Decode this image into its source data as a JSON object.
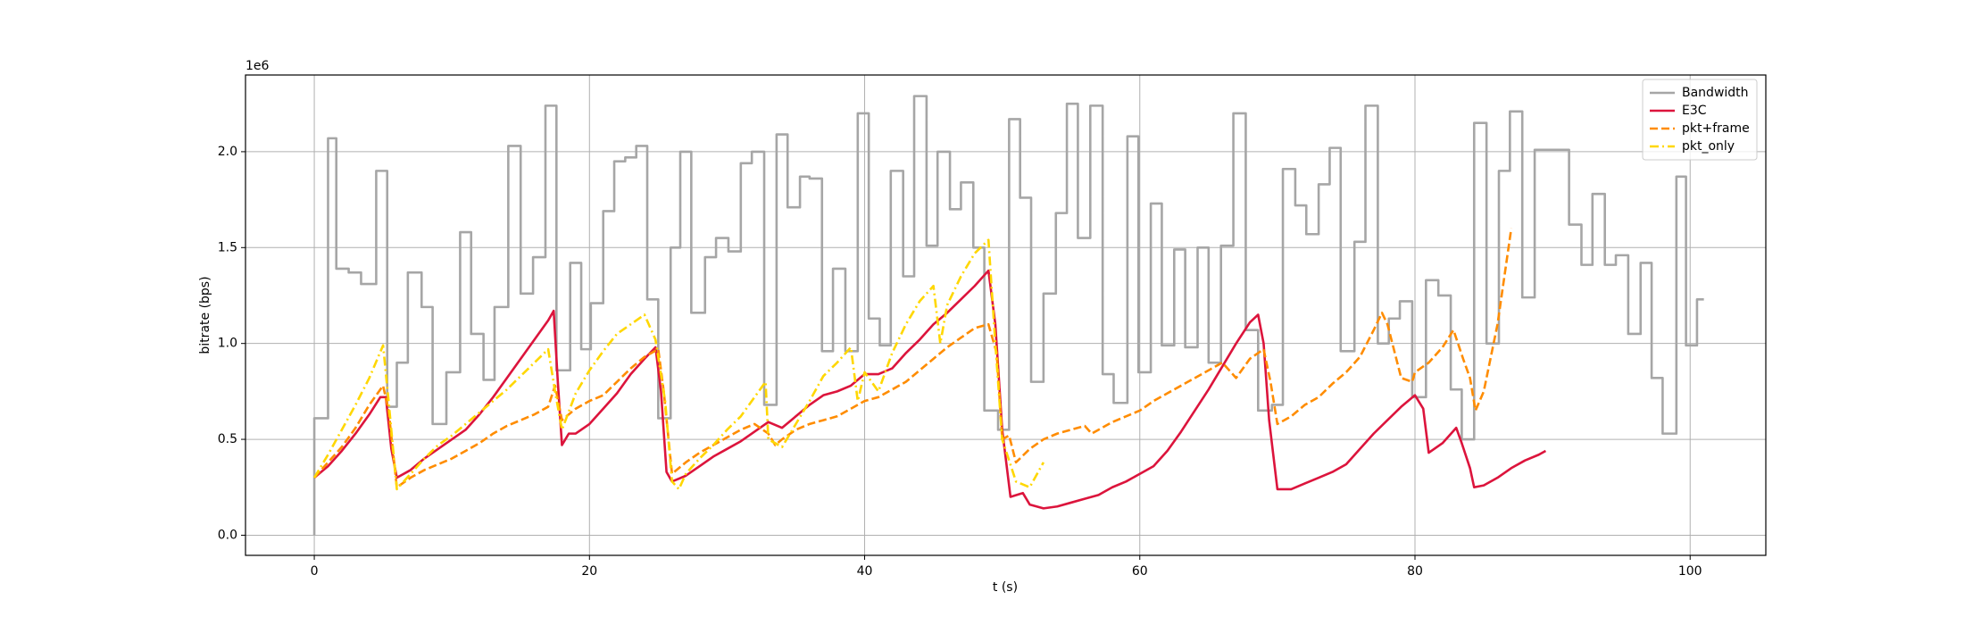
{
  "chart_data": {
    "type": "line",
    "xlabel": "t (s)",
    "ylabel": "bitrate (bps)",
    "y_offset_label": "1e6",
    "xlim": [
      -5,
      105.5
    ],
    "ylim": [
      -105000,
      2400000
    ],
    "xticks": [
      0,
      20,
      40,
      60,
      80,
      100
    ],
    "yticks": [
      {
        "value": 0,
        "label": "0.0"
      },
      {
        "value": 500000,
        "label": "0.5"
      },
      {
        "value": 1000000,
        "label": "1.0"
      },
      {
        "value": 1500000,
        "label": "1.5"
      },
      {
        "value": 2000000,
        "label": "2.0"
      }
    ],
    "grid": true,
    "legend": "upper right",
    "series": [
      {
        "name": "Bandwidth",
        "color": "#a6a6a6",
        "linestyle": "solid",
        "drawstyle": "steps-post",
        "x": [
          0,
          0,
          1,
          1.6,
          2.5,
          3.4,
          4.5,
          5.3,
          6,
          6.8,
          7.8,
          8.6,
          9.6,
          10.6,
          11.4,
          12.3,
          13.1,
          14.1,
          15,
          15.9,
          16.8,
          17.6,
          18.6,
          19.4,
          20.1,
          21,
          21.8,
          22.6,
          23.4,
          24.2,
          25,
          25.9,
          26.6,
          27.4,
          28.4,
          29.2,
          30.1,
          31,
          31.8,
          32.7,
          33.6,
          34.4,
          35.3,
          36,
          36.9,
          37.7,
          38.6,
          39.5,
          40.3,
          41.1,
          41.9,
          42.8,
          43.6,
          44.5,
          45.3,
          46.2,
          47,
          47.9,
          48.7,
          49.7,
          50.5,
          51.3,
          52.1,
          53,
          53.9,
          54.7,
          55.5,
          56.4,
          57.3,
          58.1,
          59.1,
          59.9,
          60.8,
          61.6,
          62.5,
          63.3,
          64.2,
          65,
          65.9,
          66.8,
          67.7,
          68.6,
          69.6,
          70.4,
          71.3,
          72.1,
          73,
          73.8,
          74.6,
          75.6,
          76.4,
          77.3,
          78.1,
          78.9,
          79.8,
          80.8,
          81.7,
          82.6,
          83.4,
          84.3,
          85.2,
          86.1,
          86.9,
          87.8,
          88.7,
          91.2,
          92.1,
          92.9,
          93.8,
          94.6,
          95.5,
          96.4,
          97.2,
          98,
          99,
          99.7,
          100.5,
          101
        ],
        "values": [
          0,
          610000,
          2070000,
          1390000,
          1370000,
          1310000,
          1900000,
          670000,
          900000,
          1370000,
          1190000,
          580000,
          850000,
          1580000,
          1050000,
          810000,
          1190000,
          2030000,
          1260000,
          1450000,
          2240000,
          860000,
          1420000,
          970000,
          1210000,
          1690000,
          1950000,
          1970000,
          2030000,
          1230000,
          610000,
          1500000,
          2000000,
          1160000,
          1450000,
          1550000,
          1480000,
          1940000,
          2000000,
          680000,
          2090000,
          1710000,
          1870000,
          1860000,
          960000,
          1390000,
          960000,
          2200000,
          1130000,
          990000,
          1900000,
          1350000,
          2290000,
          1510000,
          2000000,
          1700000,
          1840000,
          1500000,
          650000,
          550000,
          2170000,
          1760000,
          800000,
          1260000,
          1680000,
          2250000,
          1550000,
          2240000,
          840000,
          690000,
          2080000,
          850000,
          1730000,
          990000,
          1490000,
          980000,
          1500000,
          900000,
          1510000,
          2200000,
          1070000,
          650000,
          680000,
          1910000,
          1720000,
          1570000,
          1830000,
          2020000,
          960000,
          1530000,
          2240000,
          1000000,
          1130000,
          1220000,
          720000,
          1330000,
          1250000,
          760000,
          500000,
          2150000,
          1000000,
          1900000,
          2210000,
          1240000,
          2010000,
          1620000,
          1410000,
          1780000,
          1410000,
          1460000,
          1050000,
          1420000,
          820000,
          530000,
          1870000,
          990000,
          1230000,
          1230000
        ]
      },
      {
        "name": "E3C",
        "color": "#dc143c",
        "linestyle": "solid",
        "x": [
          0,
          1,
          2,
          3,
          4,
          4.8,
          5.2,
          5.6,
          6,
          7,
          8,
          9,
          10,
          11,
          12,
          13,
          14,
          15,
          16,
          17,
          17.4,
          17.7,
          18,
          18.5,
          19,
          20,
          21,
          22,
          23,
          24,
          24.8,
          25.2,
          25.6,
          26,
          27,
          28,
          29,
          30,
          31,
          32,
          33,
          34,
          35,
          36,
          37,
          38,
          39,
          40,
          41,
          42,
          43,
          44,
          45,
          46,
          47,
          48,
          49,
          49.5,
          50,
          50.6,
          51.5,
          52,
          53,
          54,
          55,
          56,
          57,
          58,
          59,
          60,
          61,
          62,
          63,
          64,
          65,
          66,
          67,
          68,
          68.6,
          69,
          69.4,
          70,
          71,
          72,
          73,
          74,
          75,
          76,
          77,
          78,
          79,
          80,
          80.6,
          81,
          82,
          83,
          83.4,
          84,
          84.3,
          85,
          86,
          87,
          88,
          89,
          89.5
        ],
        "values": [
          300000,
          360000,
          440000,
          530000,
          630000,
          720000,
          720000,
          450000,
          300000,
          340000,
          400000,
          450000,
          500000,
          550000,
          630000,
          720000,
          820000,
          920000,
          1020000,
          1120000,
          1170000,
          800000,
          470000,
          530000,
          530000,
          580000,
          660000,
          740000,
          840000,
          920000,
          980000,
          750000,
          330000,
          280000,
          310000,
          360000,
          410000,
          450000,
          490000,
          540000,
          590000,
          560000,
          620000,
          680000,
          730000,
          750000,
          780000,
          840000,
          840000,
          870000,
          950000,
          1020000,
          1100000,
          1160000,
          1230000,
          1300000,
          1380000,
          1100000,
          550000,
          200000,
          220000,
          160000,
          140000,
          150000,
          170000,
          190000,
          210000,
          250000,
          280000,
          320000,
          360000,
          440000,
          540000,
          650000,
          760000,
          880000,
          1000000,
          1110000,
          1150000,
          1000000,
          600000,
          240000,
          240000,
          270000,
          300000,
          330000,
          370000,
          450000,
          530000,
          600000,
          670000,
          730000,
          660000,
          430000,
          480000,
          560000,
          480000,
          350000,
          250000,
          260000,
          300000,
          350000,
          390000,
          420000,
          440000
        ]
      },
      {
        "name": "pkt+frame",
        "color": "#ff8c00",
        "linestyle": "dashed",
        "x": [
          0,
          1,
          2,
          3,
          4,
          5,
          5.4,
          6,
          7,
          8,
          9,
          10,
          11,
          12,
          13,
          14,
          15,
          16,
          17,
          17.5,
          18,
          19,
          20,
          21,
          22,
          23,
          24,
          25,
          25.4,
          26,
          27,
          28,
          29,
          30,
          31,
          32,
          33,
          33.5,
          34,
          35,
          36,
          37,
          38,
          39,
          40,
          41,
          42,
          43,
          44,
          45,
          46,
          47,
          48,
          49,
          49.6,
          50,
          50.5,
          51,
          52,
          53,
          54,
          55,
          56,
          56.5,
          57,
          58,
          59,
          60,
          61,
          62,
          63,
          64,
          65,
          66,
          67,
          68,
          69,
          69.5,
          70,
          71,
          72,
          73,
          74,
          75,
          76,
          77,
          77.6,
          78,
          79,
          79.8,
          80,
          81,
          82,
          82.8,
          83.5,
          84,
          84.4,
          85,
          86,
          87
        ],
        "values": [
          300000,
          380000,
          460000,
          560000,
          680000,
          780000,
          650000,
          250000,
          300000,
          340000,
          370000,
          400000,
          440000,
          480000,
          530000,
          570000,
          600000,
          630000,
          670000,
          780000,
          600000,
          660000,
          700000,
          730000,
          800000,
          870000,
          930000,
          970000,
          750000,
          320000,
          380000,
          430000,
          470000,
          510000,
          550000,
          580000,
          530000,
          470000,
          500000,
          550000,
          580000,
          600000,
          620000,
          660000,
          700000,
          720000,
          760000,
          800000,
          860000,
          920000,
          980000,
          1030000,
          1080000,
          1100000,
          950000,
          500000,
          520000,
          380000,
          450000,
          500000,
          530000,
          550000,
          570000,
          530000,
          550000,
          590000,
          620000,
          650000,
          700000,
          740000,
          780000,
          820000,
          860000,
          900000,
          820000,
          920000,
          970000,
          800000,
          580000,
          620000,
          680000,
          720000,
          790000,
          850000,
          930000,
          1070000,
          1160000,
          1100000,
          820000,
          800000,
          850000,
          900000,
          980000,
          1070000,
          920000,
          820000,
          650000,
          750000,
          1100000,
          1600000
        ]
      },
      {
        "name": "pkt_only",
        "color": "#ffd700",
        "linestyle": "dashdot",
        "x": [
          0,
          1,
          2,
          3,
          4,
          5,
          5.4,
          6,
          7,
          8,
          9,
          10,
          11,
          12,
          13,
          14,
          15,
          16,
          17,
          17.5,
          18,
          19,
          20,
          21,
          22,
          23,
          24,
          24.8,
          25.5,
          26,
          26.5,
          27,
          28,
          29,
          30,
          31,
          32,
          32.8,
          33,
          34,
          35,
          36,
          37,
          38,
          39,
          39.5,
          40,
          41,
          42,
          43,
          44,
          45,
          45.5,
          46,
          47,
          48,
          49,
          49.5,
          50,
          51,
          52,
          53
        ],
        "values": [
          300000,
          420000,
          550000,
          680000,
          820000,
          990000,
          700000,
          240000,
          320000,
          400000,
          470000,
          520000,
          580000,
          640000,
          700000,
          760000,
          830000,
          900000,
          970000,
          750000,
          550000,
          740000,
          860000,
          960000,
          1050000,
          1100000,
          1150000,
          1020000,
          700000,
          280000,
          240000,
          320000,
          400000,
          470000,
          550000,
          620000,
          720000,
          800000,
          500000,
          460000,
          580000,
          700000,
          830000,
          900000,
          980000,
          700000,
          850000,
          750000,
          950000,
          1100000,
          1220000,
          1300000,
          1000000,
          1200000,
          1350000,
          1470000,
          1540000,
          1000000,
          500000,
          280000,
          250000,
          380000
        ]
      }
    ]
  }
}
